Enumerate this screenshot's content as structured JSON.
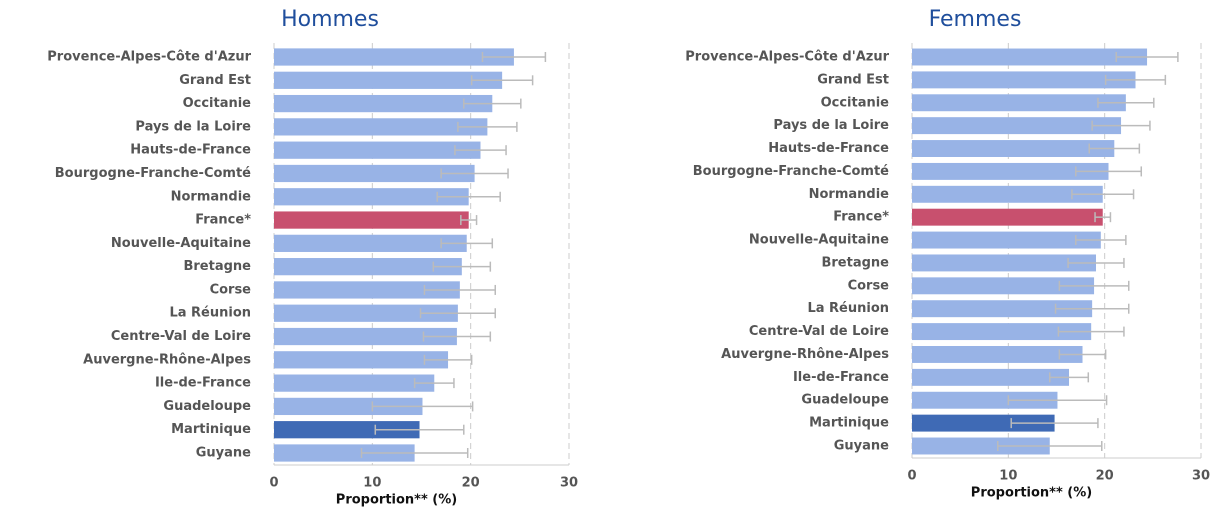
{
  "chart_data": [
    {
      "type": "bar",
      "title": "Hommes",
      "xlabel": "Proportion** (%)",
      "categories": [
        "Provence-Alpes-Côte d'Azur",
        "Grand Est",
        "Occitanie",
        "Pays de la Loire",
        "Hauts-de-France",
        "Bourgogne-Franche-Comté",
        "Normandie",
        "France*",
        "Nouvelle-Aquitaine",
        "Bretagne",
        "Corse",
        "La Réunion",
        "Centre-Val de Loire",
        "Auvergne-Rhône-Alpes",
        "Ile-de-France",
        "Guadeloupe",
        "Martinique",
        "Guyane"
      ],
      "values": [
        24.4,
        23.2,
        22.2,
        21.7,
        21.0,
        20.4,
        19.8,
        19.8,
        19.6,
        19.1,
        18.9,
        18.7,
        18.6,
        17.7,
        16.3,
        15.1,
        14.8,
        14.3
      ],
      "errors": [
        3.2,
        3.1,
        2.9,
        3.0,
        2.6,
        3.4,
        3.2,
        0.8,
        2.6,
        2.9,
        3.6,
        3.8,
        3.4,
        2.4,
        2.0,
        5.1,
        4.5,
        5.4
      ],
      "colors": [
        "#98b3e6",
        "#98b3e6",
        "#98b3e6",
        "#98b3e6",
        "#98b3e6",
        "#98b3e6",
        "#98b3e6",
        "#c8506e",
        "#98b3e6",
        "#98b3e6",
        "#98b3e6",
        "#98b3e6",
        "#98b3e6",
        "#98b3e6",
        "#98b3e6",
        "#98b3e6",
        "#3f6ab5",
        "#98b3e6"
      ],
      "xlim": [
        0,
        30
      ],
      "xticks": [
        0,
        10,
        20,
        30
      ],
      "grid": true
    },
    {
      "type": "bar",
      "title": "Femmes",
      "xlabel": "Proportion** (%)",
      "categories": [
        "Provence-Alpes-Côte d'Azur",
        "Grand Est",
        "Occitanie",
        "Pays de la Loire",
        "Hauts-de-France",
        "Bourgogne-Franche-Comté",
        "Normandie",
        "France*",
        "Nouvelle-Aquitaine",
        "Bretagne",
        "Corse",
        "La Réunion",
        "Centre-Val de Loire",
        "Auvergne-Rhône-Alpes",
        "Ile-de-France",
        "Guadeloupe",
        "Martinique",
        "Guyane"
      ],
      "values": [
        24.4,
        23.2,
        22.2,
        21.7,
        21.0,
        20.4,
        19.8,
        19.8,
        19.6,
        19.1,
        18.9,
        18.7,
        18.6,
        17.7,
        16.3,
        15.1,
        14.8,
        14.3
      ],
      "errors": [
        3.2,
        3.1,
        2.9,
        3.0,
        2.6,
        3.4,
        3.2,
        0.8,
        2.6,
        2.9,
        3.6,
        3.8,
        3.4,
        2.4,
        2.0,
        5.1,
        4.5,
        5.4
      ],
      "colors": [
        "#98b3e6",
        "#98b3e6",
        "#98b3e6",
        "#98b3e6",
        "#98b3e6",
        "#98b3e6",
        "#98b3e6",
        "#c8506e",
        "#98b3e6",
        "#98b3e6",
        "#98b3e6",
        "#98b3e6",
        "#98b3e6",
        "#98b3e6",
        "#98b3e6",
        "#98b3e6",
        "#3f6ab5",
        "#98b3e6"
      ],
      "xlim": [
        0,
        30
      ],
      "xticks": [
        0,
        10,
        20,
        30
      ],
      "grid": true
    }
  ]
}
